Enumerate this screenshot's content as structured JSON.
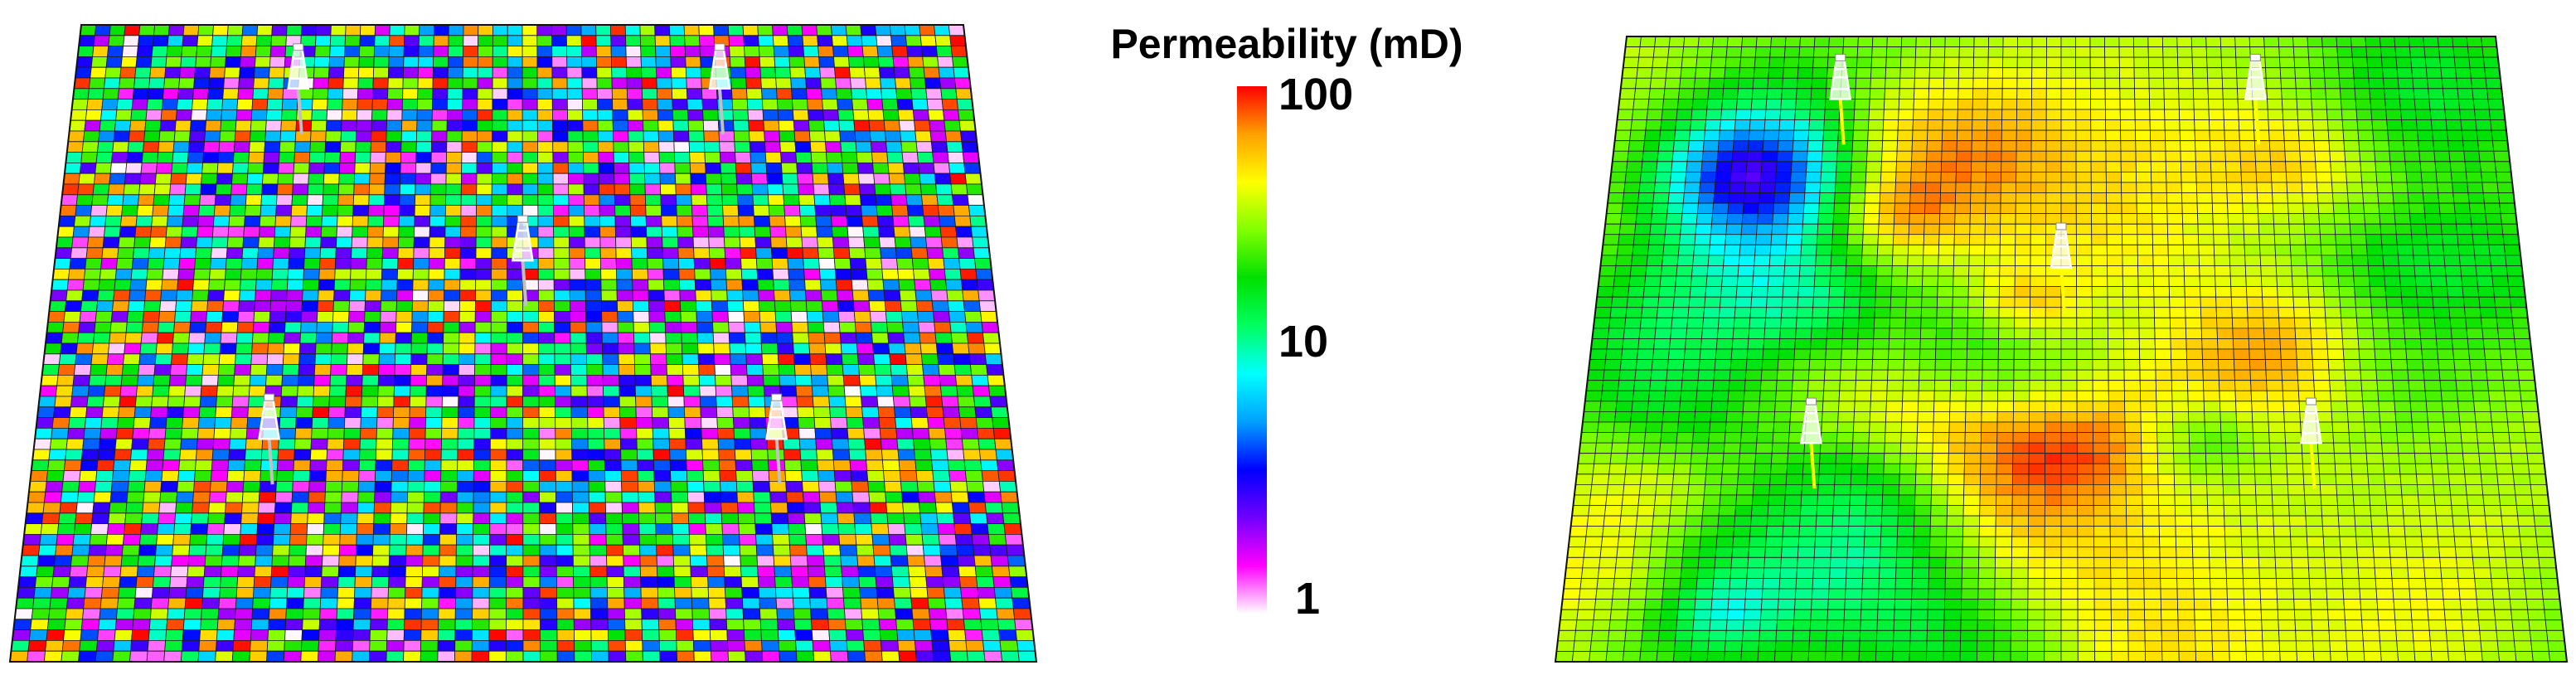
{
  "colorbar": {
    "title": "Permeability (mD)",
    "scale": "log",
    "range": [
      1,
      100
    ],
    "ticks": [
      {
        "label": "100",
        "value": 100
      },
      {
        "label": "10",
        "value": 10
      },
      {
        "label": "1",
        "value": 1
      }
    ],
    "colormap": [
      "#ffffff",
      "#ff00ff",
      "#7000ff",
      "#0000ff",
      "#00a0ff",
      "#00ffff",
      "#00ff60",
      "#00e000",
      "#80ff00",
      "#ffff00",
      "#ffa000",
      "#ff0000"
    ]
  },
  "panels": [
    {
      "id": "uncorrelated",
      "field_type": "random",
      "grid_cells": [
        60,
        60
      ],
      "wells": [
        "well-1",
        "well-2",
        "well-3",
        "well-4",
        "well-5"
      ],
      "well_color": "#c0c0c0"
    },
    {
      "id": "correlated",
      "field_type": "smooth",
      "grid_cells": [
        60,
        60
      ],
      "wells": [
        "well-1",
        "well-2",
        "well-3",
        "well-4",
        "well-5"
      ],
      "well_color": "#ffff00"
    }
  ]
}
